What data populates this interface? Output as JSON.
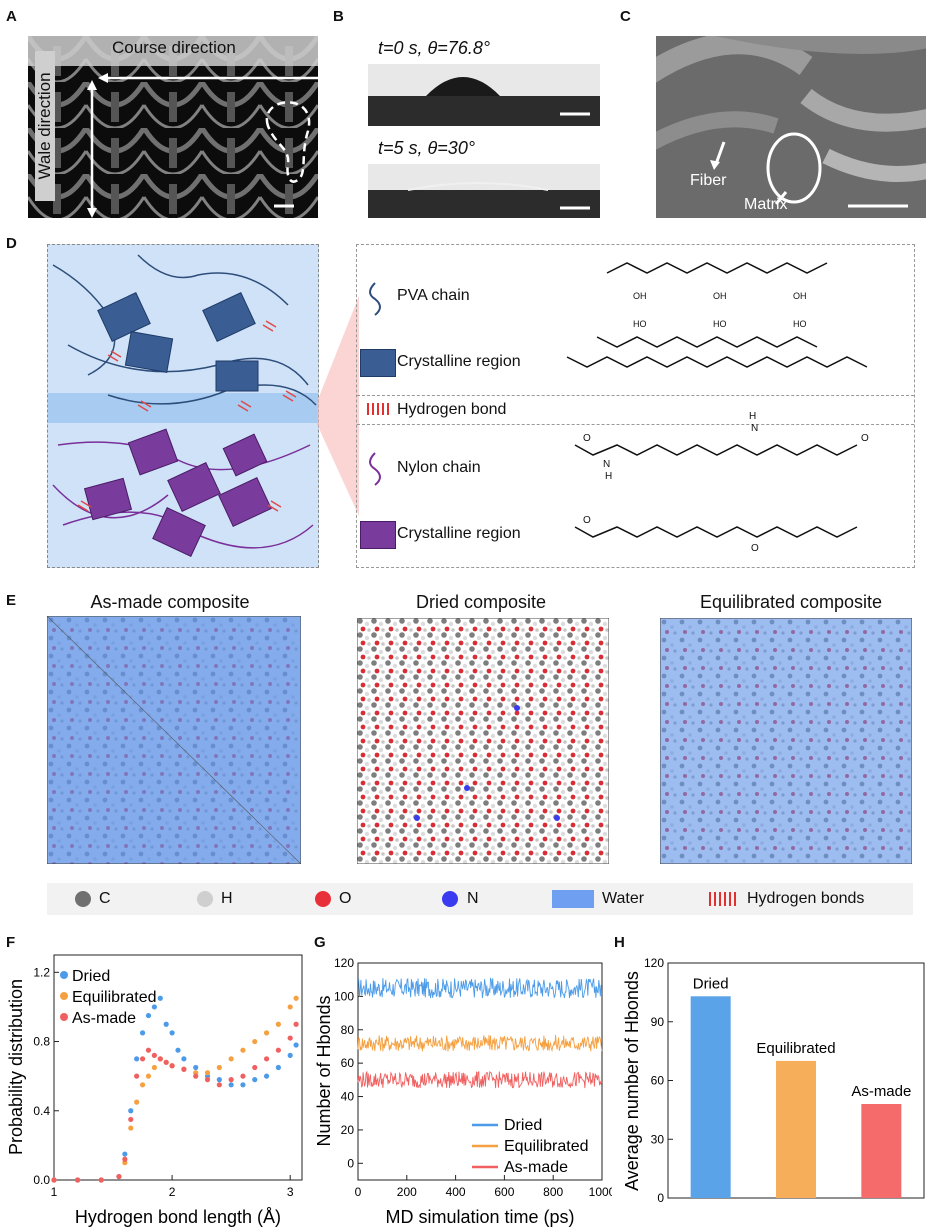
{
  "panels": {
    "A": "A",
    "B": "B",
    "C": "C",
    "D": "D",
    "E": "E",
    "F": "F",
    "G": "G",
    "H": "H"
  },
  "panelA": {
    "course": "Course direction",
    "wale": "Wale direction"
  },
  "panelB": {
    "top": "t=0 s, θ=76.8°",
    "bottom": "t=5 s, θ=30°"
  },
  "panelC": {
    "fiber": "Fiber",
    "matrix": "Matrix"
  },
  "panelD": {
    "pva_chain": "PVA chain",
    "crystalline1": "Crystalline region",
    "hbond": "Hydrogen bond",
    "nylon_chain": "Nylon chain",
    "crystalline2": "Crystalline region",
    "oh": "OH",
    "ho": "HO",
    "o": "O",
    "n": "N",
    "h": "H"
  },
  "panelE": {
    "titles": [
      "As-made composite",
      "Dried composite",
      "Equilibrated composite"
    ],
    "legend": [
      {
        "label": "C",
        "color": "#707070"
      },
      {
        "label": "H",
        "color": "#cfcfcf"
      },
      {
        "label": "O",
        "color": "#e8303a"
      },
      {
        "label": "N",
        "color": "#3a3af0"
      },
      {
        "label": "Water",
        "color": "#6e9ff0"
      },
      {
        "label": "Hydrogen bonds",
        "color": "#e03030"
      }
    ]
  },
  "chart_data": [
    {
      "id": "F",
      "type": "scatter",
      "xlabel": "Hydrogen bond length (Å)",
      "ylabel": "Probability distribution",
      "xlim": [
        1.0,
        3.1
      ],
      "ylim": [
        0,
        1.3
      ],
      "xticks": [
        "1",
        "2",
        "3"
      ],
      "yticks": [
        "0.0",
        "0.4",
        "0.8",
        "1.2"
      ],
      "legend": "top-left",
      "series": [
        {
          "name": "Dried",
          "color": "#4b9be8",
          "x": [
            1.0,
            1.2,
            1.4,
            1.55,
            1.6,
            1.65,
            1.7,
            1.75,
            1.8,
            1.85,
            1.9,
            1.95,
            2.0,
            2.05,
            2.1,
            2.2,
            2.3,
            2.4,
            2.5,
            2.6,
            2.7,
            2.8,
            2.9,
            3.0,
            3.05
          ],
          "y": [
            0,
            0,
            0,
            0.02,
            0.15,
            0.4,
            0.7,
            0.85,
            0.95,
            1.0,
            1.05,
            0.9,
            0.85,
            0.75,
            0.7,
            0.65,
            0.6,
            0.58,
            0.55,
            0.55,
            0.58,
            0.6,
            0.65,
            0.72,
            0.78
          ]
        },
        {
          "name": "Equilibrated",
          "color": "#f5a142",
          "x": [
            1.0,
            1.2,
            1.4,
            1.55,
            1.6,
            1.65,
            1.7,
            1.75,
            1.8,
            1.85,
            1.9,
            1.95,
            2.0,
            2.1,
            2.2,
            2.3,
            2.4,
            2.5,
            2.6,
            2.7,
            2.8,
            2.9,
            3.0,
            3.05
          ],
          "y": [
            0,
            0,
            0,
            0.02,
            0.1,
            0.3,
            0.45,
            0.55,
            0.6,
            0.65,
            0.7,
            0.68,
            0.66,
            0.64,
            0.62,
            0.62,
            0.65,
            0.7,
            0.75,
            0.8,
            0.85,
            0.9,
            1.0,
            1.05
          ]
        },
        {
          "name": "As-made",
          "color": "#f06060",
          "x": [
            1.0,
            1.2,
            1.4,
            1.55,
            1.6,
            1.65,
            1.7,
            1.75,
            1.8,
            1.85,
            1.9,
            1.95,
            2.0,
            2.1,
            2.2,
            2.3,
            2.4,
            2.5,
            2.6,
            2.7,
            2.8,
            2.9,
            3.0,
            3.05
          ],
          "y": [
            0,
            0,
            0,
            0.02,
            0.12,
            0.35,
            0.6,
            0.7,
            0.75,
            0.72,
            0.7,
            0.68,
            0.66,
            0.64,
            0.6,
            0.58,
            0.55,
            0.58,
            0.6,
            0.65,
            0.7,
            0.75,
            0.82,
            0.9
          ]
        }
      ]
    },
    {
      "id": "G",
      "type": "line",
      "xlabel": "MD simulation time (ps)",
      "ylabel": "Number of Hbonds",
      "xlim": [
        0,
        1000
      ],
      "ylim": [
        -10,
        120
      ],
      "xticks": [
        "0",
        "200",
        "400",
        "600",
        "800",
        "1000"
      ],
      "yticks": [
        "0",
        "20",
        "40",
        "60",
        "80",
        "100",
        "120"
      ],
      "legend": "bottom-right",
      "series": [
        {
          "name": "Dried",
          "color": "#4b9be8",
          "mean": 105,
          "amp": 6
        },
        {
          "name": "Equilibrated",
          "color": "#f5a142",
          "mean": 72,
          "amp": 5
        },
        {
          "name": "As-made",
          "color": "#f06060",
          "mean": 50,
          "amp": 5
        }
      ]
    },
    {
      "id": "H",
      "type": "bar",
      "ylabel": "Average number of Hbonds",
      "ylim": [
        0,
        120
      ],
      "yticks": [
        "0",
        "30",
        "60",
        "90",
        "120"
      ],
      "categories": [
        "Dried",
        "Equilibrated",
        "As-made"
      ],
      "values": [
        103,
        70,
        48
      ],
      "colors": [
        "#5aa3e8",
        "#f7ae5a",
        "#f56b6b"
      ]
    }
  ]
}
